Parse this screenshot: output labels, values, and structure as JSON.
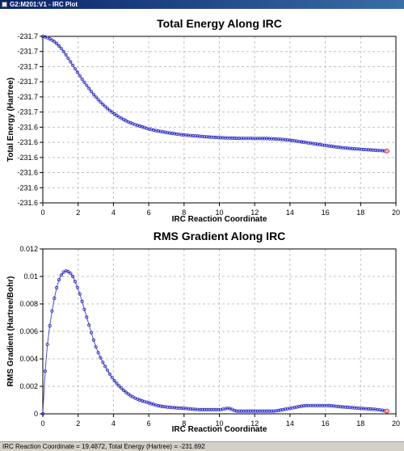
{
  "window": {
    "title": "G2:M201:V1 - IRC Plot",
    "icon": "plot-window-icon"
  },
  "status": {
    "text": "IRC Reaction Coordinate = 19.4872,  Total Energy (Hartree) = -231.692"
  },
  "colors": {
    "marker": "#2020c0",
    "line": "#5050d0",
    "highlight": "#e02020",
    "grid": "#c0c0c0",
    "plot_bg": "#ffffff"
  },
  "chart_data": [
    {
      "type": "line",
      "title": "Total Energy Along IRC",
      "xlabel": "IRC Reaction Coordinate",
      "ylabel": "Total Energy (Hartree)",
      "xlim": [
        0,
        20
      ],
      "ylim": [
        -231.7,
        -231.6
      ],
      "x_ticks": [
        "0",
        "2",
        "4",
        "6",
        "8",
        "10",
        "12",
        "14",
        "16",
        "18",
        "20"
      ],
      "y_ticks": [
        "-231.6",
        "-231.6",
        "-231.6",
        "-231.6",
        "-231.6",
        "-231.6",
        "-231.7",
        "-231.7",
        "-231.7",
        "-231.7",
        "-231.7",
        "-231.7"
      ],
      "grid": true,
      "highlight_last_point": true,
      "x": [
        0,
        0.25,
        0.5,
        0.75,
        1,
        1.25,
        1.5,
        2,
        2.5,
        3,
        3.5,
        4,
        4.5,
        5,
        5.5,
        6,
        7,
        8,
        9,
        10,
        11,
        12,
        13,
        14,
        15,
        16,
        17,
        18,
        19,
        19.4872
      ],
      "y": [
        -231.6,
        -231.6008,
        -231.6021,
        -231.604,
        -231.6068,
        -231.6102,
        -231.6142,
        -231.6222,
        -231.6297,
        -231.6364,
        -231.6418,
        -231.6462,
        -231.6495,
        -231.6521,
        -231.6539,
        -231.6556,
        -231.6577,
        -231.6592,
        -231.6601,
        -231.6608,
        -231.6612,
        -231.6613,
        -231.6615,
        -231.6624,
        -231.6639,
        -231.6655,
        -231.6669,
        -231.6678,
        -231.6685,
        -231.6688
      ]
    },
    {
      "type": "line",
      "title": "RMS Gradient Along IRC",
      "xlabel": "IRC Reaction Coordinate",
      "ylabel": "RMS Gradient (Hartree/Bohr)",
      "xlim": [
        0,
        20
      ],
      "ylim": [
        0,
        0.012
      ],
      "x_ticks": [
        "0",
        "2",
        "4",
        "6",
        "8",
        "10",
        "12",
        "14",
        "16",
        "18",
        "20"
      ],
      "y_ticks": [
        "0",
        "0.002",
        "0.004",
        "0.006",
        "0.008",
        "0.01",
        "0.012"
      ],
      "grid": true,
      "highlight_last_point": true,
      "x": [
        0,
        0.1,
        0.2,
        0.3,
        0.5,
        0.7,
        0.9,
        1.1,
        1.3,
        1.5,
        1.7,
        1.9,
        2.1,
        2.4,
        2.7,
        3,
        3.3,
        3.6,
        4,
        4.5,
        5,
        5.5,
        6,
        6.5,
        7,
        8,
        9,
        10,
        10.5,
        11,
        12,
        13,
        14,
        15,
        15.5,
        16,
        17,
        18,
        19,
        19.4872
      ],
      "y": [
        0,
        0.0025,
        0.0042,
        0.0055,
        0.0073,
        0.0087,
        0.0097,
        0.0102,
        0.0104,
        0.0103,
        0.01,
        0.0094,
        0.0087,
        0.0074,
        0.0061,
        0.0049,
        0.004,
        0.0033,
        0.0025,
        0.0018,
        0.0013,
        0.001,
        0.0008,
        0.0006,
        0.0005,
        0.0004,
        0.0003,
        0.0003,
        0.0004,
        0.0002,
        0.0002,
        0.0002,
        0.0004,
        0.0006,
        0.0006,
        0.0006,
        0.0005,
        0.0004,
        0.0003,
        0.0002
      ]
    }
  ]
}
